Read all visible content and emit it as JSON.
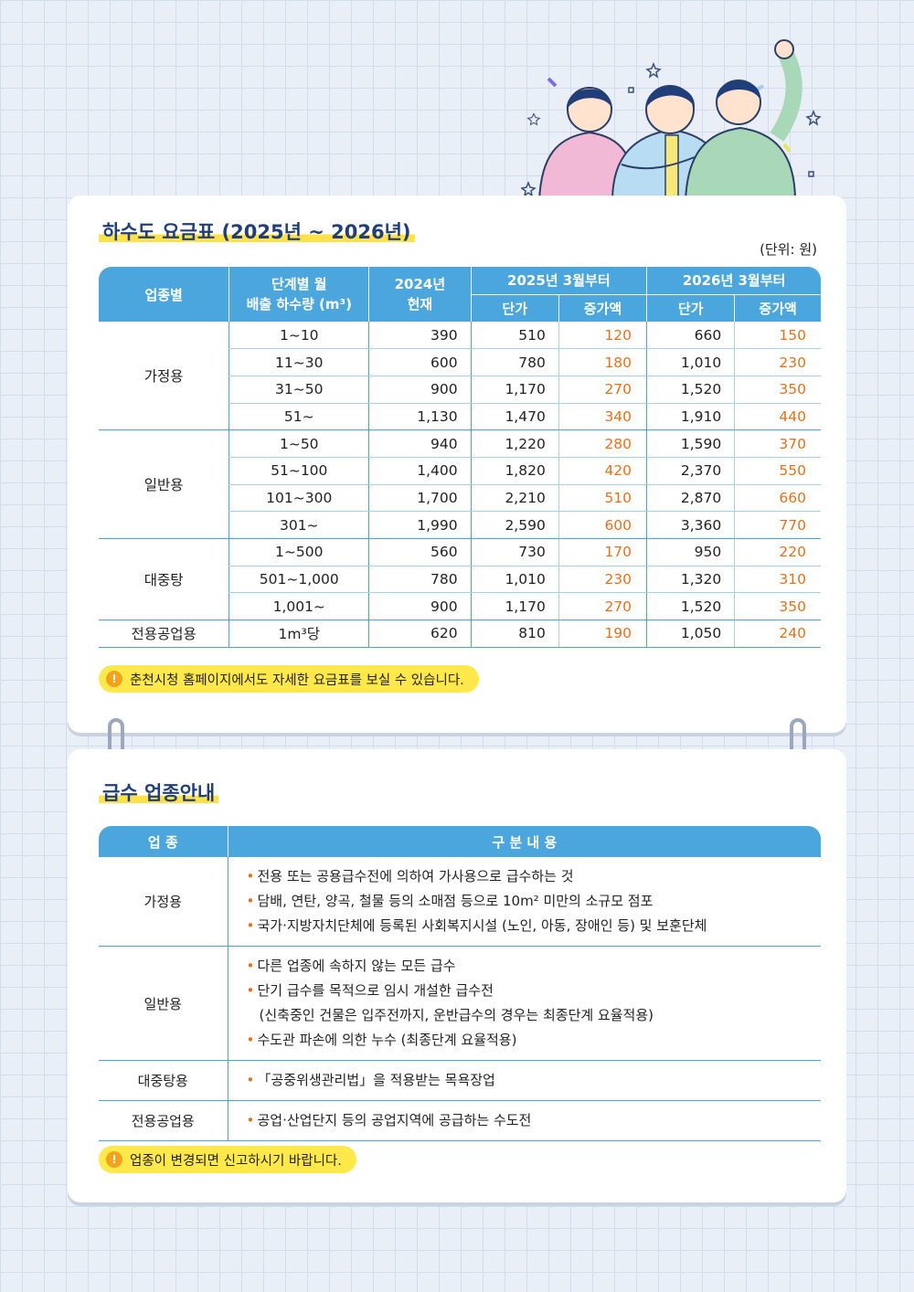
{
  "sewer": {
    "title": "하수도 요금표 (2025년 ~ 2026년)",
    "unit": "(단위: 원)",
    "headers": {
      "category": "업종별",
      "step_line1": "단계별 월",
      "step_line2": "배출 하수량 (m³)",
      "y2024_line1": "2024년",
      "y2024_line2": "현재",
      "y2025": "2025년 3월부터",
      "y2026": "2026년 3월부터",
      "unit_price": "단가",
      "increase": "증가액"
    },
    "groups": [
      {
        "name": "가정용",
        "rows": [
          {
            "step": "1~10",
            "v2024": "390",
            "p2025": "510",
            "i2025": "120",
            "p2026": "660",
            "i2026": "150"
          },
          {
            "step": "11~30",
            "v2024": "600",
            "p2025": "780",
            "i2025": "180",
            "p2026": "1,010",
            "i2026": "230"
          },
          {
            "step": "31~50",
            "v2024": "900",
            "p2025": "1,170",
            "i2025": "270",
            "p2026": "1,520",
            "i2026": "350"
          },
          {
            "step": "51~",
            "v2024": "1,130",
            "p2025": "1,470",
            "i2025": "340",
            "p2026": "1,910",
            "i2026": "440"
          }
        ]
      },
      {
        "name": "일반용",
        "rows": [
          {
            "step": "1~50",
            "v2024": "940",
            "p2025": "1,220",
            "i2025": "280",
            "p2026": "1,590",
            "i2026": "370"
          },
          {
            "step": "51~100",
            "v2024": "1,400",
            "p2025": "1,820",
            "i2025": "420",
            "p2026": "2,370",
            "i2026": "550"
          },
          {
            "step": "101~300",
            "v2024": "1,700",
            "p2025": "2,210",
            "i2025": "510",
            "p2026": "2,870",
            "i2026": "660"
          },
          {
            "step": "301~",
            "v2024": "1,990",
            "p2025": "2,590",
            "i2025": "600",
            "p2026": "3,360",
            "i2026": "770"
          }
        ]
      },
      {
        "name": "대중탕",
        "rows": [
          {
            "step": "1~500",
            "v2024": "560",
            "p2025": "730",
            "i2025": "170",
            "p2026": "950",
            "i2026": "220"
          },
          {
            "step": "501~1,000",
            "v2024": "780",
            "p2025": "1,010",
            "i2025": "230",
            "p2026": "1,320",
            "i2026": "310"
          },
          {
            "step": "1,001~",
            "v2024": "900",
            "p2025": "1,170",
            "i2025": "270",
            "p2026": "1,520",
            "i2026": "350"
          }
        ]
      },
      {
        "name": "전용공업용",
        "rows": [
          {
            "step": "1m³당",
            "v2024": "620",
            "p2025": "810",
            "i2025": "190",
            "p2026": "1,050",
            "i2026": "240"
          }
        ]
      }
    ],
    "note": "춘천시청 홈페이지에서도 자세한 요금표를 보실 수 있습니다."
  },
  "water": {
    "title": "급수 업종안내",
    "headers": {
      "category": "업 종",
      "content": "구 분 내 용"
    },
    "rows": [
      {
        "category": "가정용",
        "items": [
          "전용 또는 공용급수전에 의하여 가사용으로 급수하는 것",
          "담배, 연탄, 양곡, 철물 등의 소매점 등으로 10m² 미만의 소규모 점포",
          "국가·지방자치단체에 등록된 사회복지시설 (노인, 아동, 장애인 등) 및 보훈단체"
        ]
      },
      {
        "category": "일반용",
        "items": [
          "다른 업종에 속하지 않는 모든 급수",
          "단기 급수를 목적으로 임시 개설한 급수전",
          "(신축중인 건물은 입주전까지, 운반급수의 경우는 최종단계 요율적용)",
          "수도관 파손에 의한 누수 (최종단계 요율적용)"
        ]
      },
      {
        "category": "대중탕용",
        "items": [
          "「공중위생관리법」을 적용받는 목욕장업"
        ]
      },
      {
        "category": "전용공업용",
        "items": [
          "공업·산업단지 등의 공업지역에 공급하는 수도전"
        ]
      }
    ],
    "note": "업종이 변경되면 신고하시기 바랍니다."
  },
  "icons": {
    "warning": "warning-icon",
    "warning_glyph": "!"
  },
  "colors": {
    "header_blue": "#4aa6dc",
    "increase_orange": "#e8701c",
    "note_yellow": "#ffe84a",
    "title_navy": "#1f3e7a"
  }
}
